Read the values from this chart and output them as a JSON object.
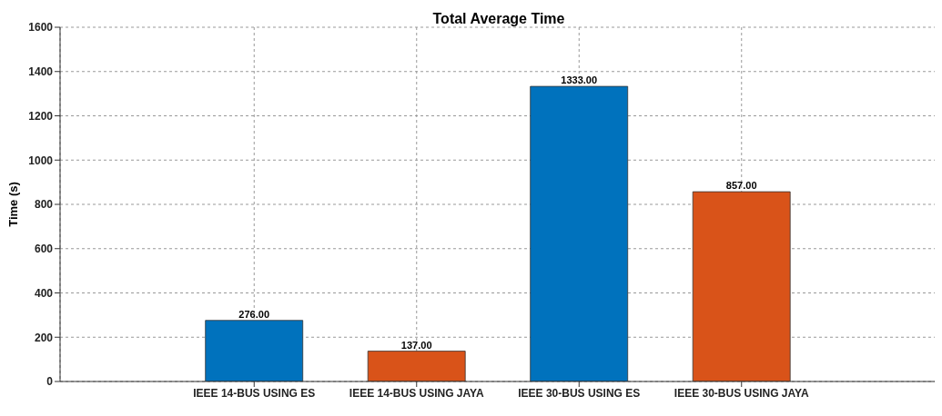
{
  "chart_data": {
    "type": "bar",
    "title": "Total Average Time",
    "ylabel": "Time (s)",
    "categories": [
      "IEEE 14-BUS USING ES",
      "IEEE 14-BUS USING JAYA",
      "IEEE 30-BUS USING ES",
      "IEEE 30-BUS USING JAYA"
    ],
    "values": [
      276,
      137,
      1333,
      857
    ],
    "colors": [
      "#0072bd",
      "#d95319",
      "#0072bd",
      "#d95319"
    ],
    "value_labels": [
      "276.00",
      "137.00",
      "1333.00",
      "857.00"
    ],
    "ylim": [
      0,
      1600
    ],
    "yticks": [
      0,
      200,
      400,
      600,
      800,
      1000,
      1200,
      1400,
      1600
    ],
    "grid": true
  }
}
